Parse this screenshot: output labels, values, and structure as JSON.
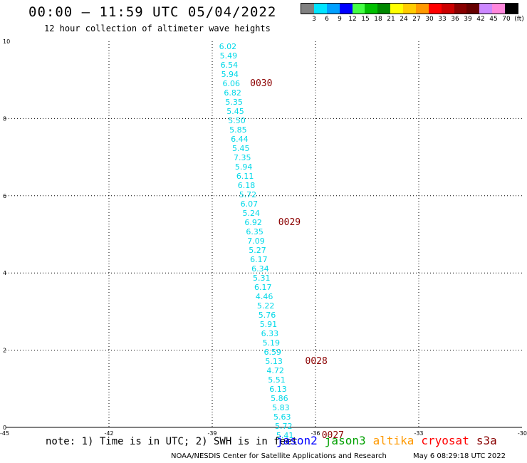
{
  "header": {
    "title": "00:00 — 11:59 UTC 05/04/2022",
    "subtitle": "12 hour collection of altimeter wave heights"
  },
  "colorbar": {
    "colors": [
      "#808080",
      "#00e5ff",
      "#00a0ff",
      "#0000ff",
      "#44ff44",
      "#00c000",
      "#008800",
      "#ffff00",
      "#ffcc00",
      "#ff9900",
      "#ff0000",
      "#cc0000",
      "#880000",
      "#660000",
      "#cc88ff",
      "#ff88dd",
      "#000000"
    ],
    "labels": [
      "3",
      "6",
      "9",
      "12",
      "15",
      "18",
      "21",
      "24",
      "27",
      "30",
      "33",
      "36",
      "39",
      "42",
      "45",
      "70",
      "(ft)"
    ]
  },
  "axes": {
    "x_ticks": [
      -45,
      -42,
      -39,
      -36,
      -33,
      -30
    ],
    "y_ticks": [
      0,
      2,
      4,
      6,
      8,
      10
    ],
    "x_range": [
      -45,
      -30
    ],
    "y_range": [
      0,
      10
    ]
  },
  "observations": [
    {
      "lon": -38.8,
      "lat": 9.8,
      "v": "6.02"
    },
    {
      "lon": -38.78,
      "lat": 9.56,
      "v": "5.49"
    },
    {
      "lon": -38.76,
      "lat": 9.32,
      "v": "6.54"
    },
    {
      "lon": -38.74,
      "lat": 9.08,
      "v": "5.94"
    },
    {
      "lon": -38.7,
      "lat": 8.84,
      "v": "6.06"
    },
    {
      "lon": -38.66,
      "lat": 8.6,
      "v": "6.82"
    },
    {
      "lon": -38.62,
      "lat": 8.36,
      "v": "5.35"
    },
    {
      "lon": -38.58,
      "lat": 8.12,
      "v": "5.45"
    },
    {
      "lon": -38.54,
      "lat": 7.88,
      "v": "5.50"
    },
    {
      "lon": -38.5,
      "lat": 7.64,
      "v": "5.85"
    },
    {
      "lon": -38.46,
      "lat": 7.4,
      "v": "6.44"
    },
    {
      "lon": -38.42,
      "lat": 7.16,
      "v": "5.45"
    },
    {
      "lon": -38.38,
      "lat": 6.92,
      "v": "7.35"
    },
    {
      "lon": -38.34,
      "lat": 6.68,
      "v": "5.94"
    },
    {
      "lon": -38.3,
      "lat": 6.44,
      "v": "6.11"
    },
    {
      "lon": -38.26,
      "lat": 6.2,
      "v": "6.18"
    },
    {
      "lon": -38.22,
      "lat": 5.96,
      "v": "5.72"
    },
    {
      "lon": -38.18,
      "lat": 5.72,
      "v": "6.07"
    },
    {
      "lon": -38.12,
      "lat": 5.48,
      "v": "5.24"
    },
    {
      "lon": -38.06,
      "lat": 5.24,
      "v": "6.92"
    },
    {
      "lon": -38.02,
      "lat": 5.0,
      "v": "6.35"
    },
    {
      "lon": -37.98,
      "lat": 4.76,
      "v": "7.09"
    },
    {
      "lon": -37.94,
      "lat": 4.52,
      "v": "5.27"
    },
    {
      "lon": -37.9,
      "lat": 4.28,
      "v": "6.17"
    },
    {
      "lon": -37.86,
      "lat": 4.04,
      "v": "6.34"
    },
    {
      "lon": -37.82,
      "lat": 3.8,
      "v": "5.31"
    },
    {
      "lon": -37.78,
      "lat": 3.56,
      "v": "6.17"
    },
    {
      "lon": -37.74,
      "lat": 3.32,
      "v": "4.46"
    },
    {
      "lon": -37.7,
      "lat": 3.08,
      "v": "5.22"
    },
    {
      "lon": -37.66,
      "lat": 2.84,
      "v": "5.76"
    },
    {
      "lon": -37.62,
      "lat": 2.6,
      "v": "5.91"
    },
    {
      "lon": -37.58,
      "lat": 2.36,
      "v": "6.33"
    },
    {
      "lon": -37.54,
      "lat": 2.12,
      "v": "5.19"
    },
    {
      "lon": -37.5,
      "lat": 1.88,
      "v": "6.59"
    },
    {
      "lon": -37.46,
      "lat": 1.64,
      "v": "5.13"
    },
    {
      "lon": -37.42,
      "lat": 1.4,
      "v": "4.72"
    },
    {
      "lon": -37.38,
      "lat": 1.16,
      "v": "5.51"
    },
    {
      "lon": -37.34,
      "lat": 0.92,
      "v": "6.13"
    },
    {
      "lon": -37.3,
      "lat": 0.68,
      "v": "5.86"
    },
    {
      "lon": -37.26,
      "lat": 0.44,
      "v": "5.83"
    },
    {
      "lon": -37.22,
      "lat": 0.2,
      "v": "5.63"
    },
    {
      "lon": -37.18,
      "lat": -0.04,
      "v": "5.72"
    },
    {
      "lon": -37.14,
      "lat": -0.28,
      "v": "5.41"
    }
  ],
  "pass_labels": [
    {
      "lon": -37.9,
      "lat": 8.84,
      "text": "0030"
    },
    {
      "lon": -37.08,
      "lat": 5.24,
      "text": "0029"
    },
    {
      "lon": -36.3,
      "lat": 1.64,
      "text": "0028"
    },
    {
      "lon": -35.82,
      "lat": -0.28,
      "text": "0027"
    }
  ],
  "point_color": "#00d8e8",
  "pass_color": "#8b0000",
  "note": "note: 1) Time is in UTC; 2) SWH is in feet",
  "legend": [
    {
      "label": "jason2",
      "color": "#0000ff"
    },
    {
      "label": "jason3",
      "color": "#00a000"
    },
    {
      "label": "altika",
      "color": "#ff9900"
    },
    {
      "label": "cryosat",
      "color": "#ff0000"
    },
    {
      "label": "s3a",
      "color": "#880000"
    }
  ],
  "footer": {
    "left": "NOAA/NESDIS Center for Satellite Applications and Research",
    "right": "May  6 08:29:18 UTC 2022"
  }
}
